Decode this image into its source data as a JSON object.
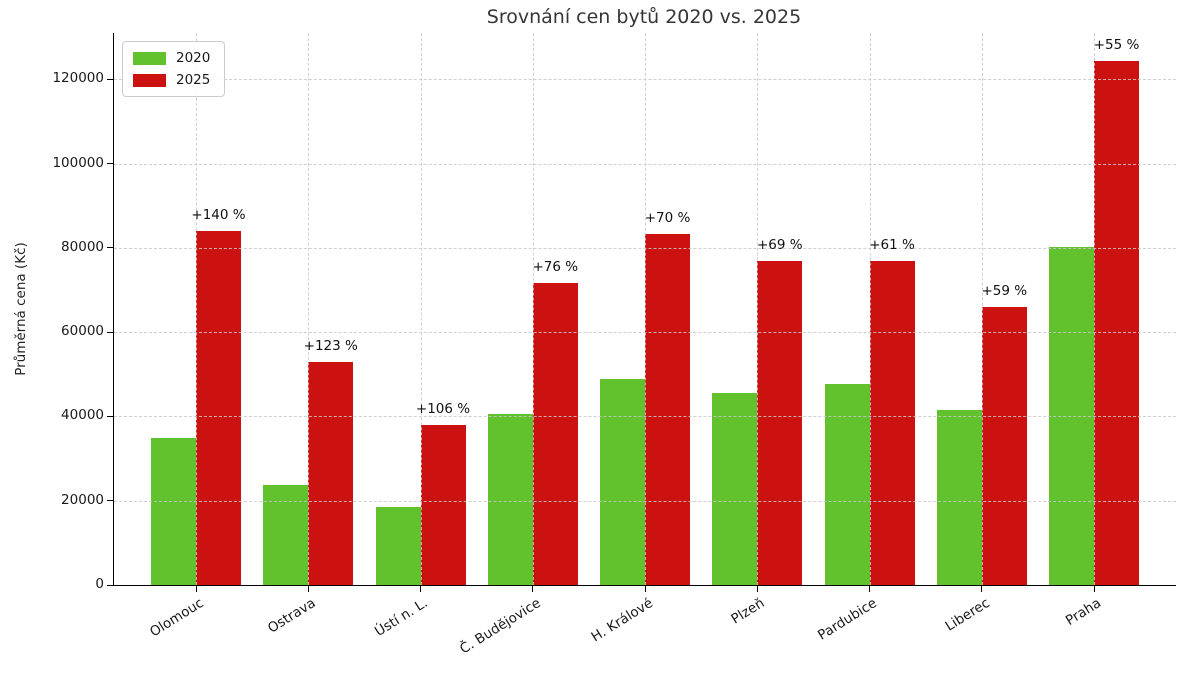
{
  "chart_data": {
    "type": "bar",
    "title": "Srovnání cen bytů 2020 vs. 2025",
    "ylabel": "Průměrná cena (Kč)",
    "xlabel": "",
    "categories": [
      "Olomouc",
      "Ostrava",
      "Ústí n. L.",
      "Č. Budějovice",
      "H. Králové",
      "Plzeň",
      "Pardubice",
      "Liberec",
      "Praha"
    ],
    "series": [
      {
        "name": "2020",
        "color": "#62c22e",
        "values": [
          35000,
          23700,
          18400,
          40700,
          49000,
          45600,
          47700,
          41500,
          80200
        ]
      },
      {
        "name": "2025",
        "color": "#cc1111",
        "values": [
          84000,
          52900,
          37900,
          71600,
          83300,
          77000,
          76800,
          65900,
          124300
        ]
      }
    ],
    "annotations": [
      "+140 %",
      "+123 %",
      "+106 %",
      "+76 %",
      "+70 %",
      "+69 %",
      "+61 %",
      "+59 %",
      "+55 %"
    ],
    "yticks": [
      0,
      20000,
      40000,
      60000,
      80000,
      100000,
      120000
    ],
    "ylim": [
      0,
      131000
    ],
    "grid": true,
    "grid_style": "dashed",
    "legend_position": "upper left",
    "colors": {
      "accent_2020": "#62c22e",
      "accent_2025": "#cc1111",
      "axis": "#000000",
      "grid": "#c8c8c8",
      "title_text": "#363636"
    }
  }
}
